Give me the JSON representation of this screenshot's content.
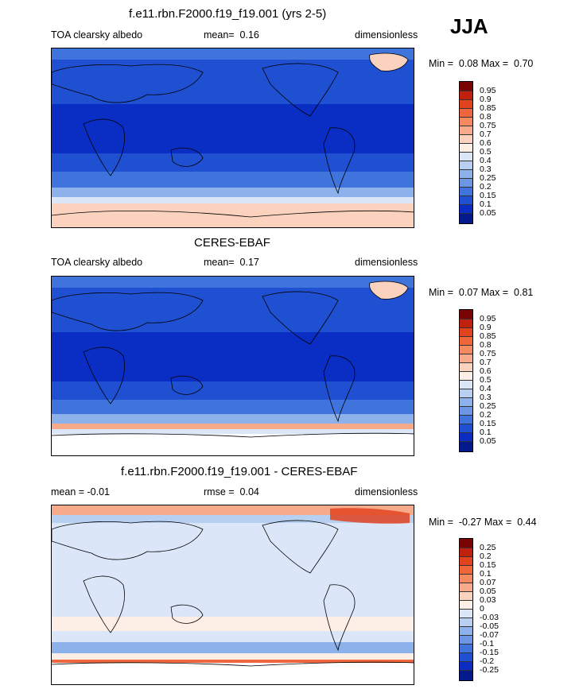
{
  "season": "JJA",
  "panels": [
    {
      "title": "f.e11.rbn.F2000.f19_f19.001 (yrs 2-5)",
      "left_label": "TOA clearsky albedo",
      "stat_label": "mean=",
      "stat_value": "0.16",
      "units": "dimensionless",
      "min_label": "Min =",
      "min_value": "0.08",
      "max_label": "Max =",
      "max_value": "0.70",
      "colorbar_ticks": [
        "0.95",
        "0.9",
        "0.85",
        "0.8",
        "0.75",
        "0.7",
        "0.6",
        "0.5",
        "0.4",
        "0.3",
        "0.25",
        "0.2",
        "0.15",
        "0.1",
        "0.05"
      ]
    },
    {
      "title": "CERES-EBAF",
      "left_label": "TOA clearsky albedo",
      "stat_label": "mean=",
      "stat_value": "0.17",
      "units": "dimensionless",
      "min_label": "Min =",
      "min_value": "0.07",
      "max_label": "Max =",
      "max_value": "0.81",
      "colorbar_ticks": [
        "0.95",
        "0.9",
        "0.85",
        "0.8",
        "0.75",
        "0.7",
        "0.6",
        "0.5",
        "0.4",
        "0.3",
        "0.25",
        "0.2",
        "0.15",
        "0.1",
        "0.05"
      ]
    },
    {
      "title": "f.e11.rbn.F2000.f19_f19.001 - CERES-EBAF",
      "left_label": "mean =  -0.01",
      "stat_label": "rmse =",
      "stat_value": "0.04",
      "units": "dimensionless",
      "min_label": "Min =",
      "min_value": "-0.27",
      "max_label": "Max =",
      "max_value": "0.44",
      "colorbar_ticks": [
        "0.25",
        "0.2",
        "0.15",
        "0.1",
        "0.07",
        "0.05",
        "0.03",
        "0",
        "-0.03",
        "-0.05",
        "-0.07",
        "-0.1",
        "-0.15",
        "-0.2",
        "-0.25"
      ]
    }
  ],
  "colors": {
    "abs_scale": [
      "#7a0403",
      "#c1200d",
      "#e2431e",
      "#f0663c",
      "#f5895f",
      "#f8ab8b",
      "#fbd2bd",
      "#fdeee6",
      "#dbe7f8",
      "#b7cff1",
      "#8db1ea",
      "#6b97e4",
      "#3f74dc",
      "#1f50d2",
      "#0a2ec4",
      "#041a8c"
    ],
    "diff_scale": [
      "#7a0403",
      "#c1200d",
      "#e2431e",
      "#f0663c",
      "#f5895f",
      "#f8ab8b",
      "#fbd2bd",
      "#fdeee6",
      "#dbe7f8",
      "#b7cff1",
      "#8db1ea",
      "#6b97e4",
      "#3f74dc",
      "#1f50d2",
      "#0a2ec4",
      "#041a8c"
    ]
  }
}
